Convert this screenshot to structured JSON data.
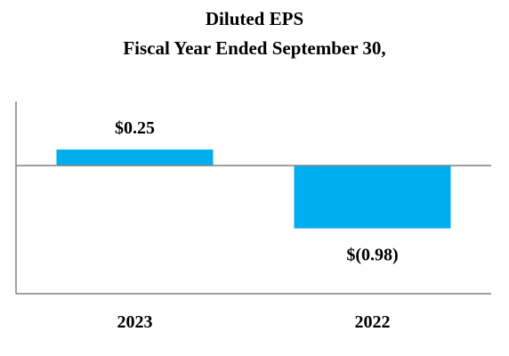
{
  "chart_data": {
    "type": "bar",
    "title": "Diluted EPS",
    "subtitle": "Fiscal Year Ended September 30,",
    "xlabel": "",
    "ylabel": "",
    "categories": [
      "2023",
      "2022"
    ],
    "values": [
      0.25,
      -0.98
    ],
    "data_labels": [
      "$0.25",
      "$(0.98)"
    ],
    "ylim": [
      -2.0,
      1.0
    ],
    "grid": false,
    "legend": "none",
    "colors": {
      "bar": "#00AEEF",
      "axis": "#808080",
      "text": "#000000"
    }
  }
}
